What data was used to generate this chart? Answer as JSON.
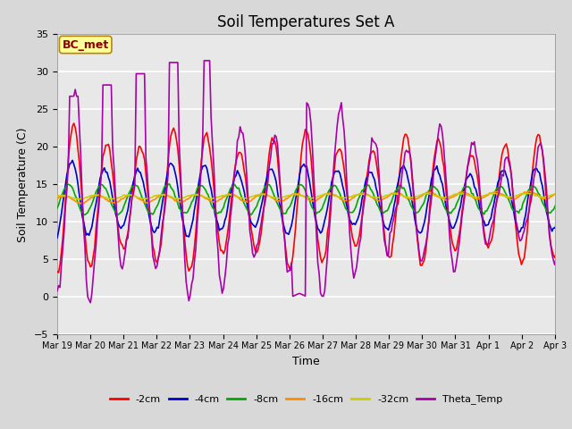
{
  "title": "Soil Temperatures Set A",
  "xlabel": "Time",
  "ylabel": "Soil Temperature (C)",
  "ylim": [
    -5,
    35
  ],
  "annotation": "BC_met",
  "annotation_color": "#8B0000",
  "annotation_bg": "#FFFF99",
  "annotation_border": "#B8860B",
  "colors": {
    "-2cm": "#FF0000",
    "-4cm": "#0000CC",
    "-8cm": "#00AA00",
    "-16cm": "#FF8C00",
    "-32cm": "#CCCC00",
    "Theta_Temp": "#AA00AA"
  },
  "background_color": "#E8E8E8",
  "grid_color": "#FFFFFF",
  "title_fontsize": 12,
  "axis_fontsize": 9,
  "tick_fontsize": 8,
  "x_tick_labels": [
    "Mar 19",
    "Mar 20",
    "Mar 21",
    "Mar 22",
    "Mar 23",
    "Mar 24",
    "Mar 25",
    "Mar 26",
    "Mar 27",
    "Mar 28",
    "Mar 29",
    "Mar 30",
    "Mar 31",
    "Apr 1",
    "Apr 2",
    "Apr 3"
  ],
  "x_tick_positions": [
    0,
    1,
    2,
    3,
    4,
    5,
    6,
    7,
    8,
    9,
    10,
    11,
    12,
    13,
    14,
    15
  ],
  "y_ticks": [
    -5,
    0,
    5,
    10,
    15,
    20,
    25,
    30,
    35
  ]
}
